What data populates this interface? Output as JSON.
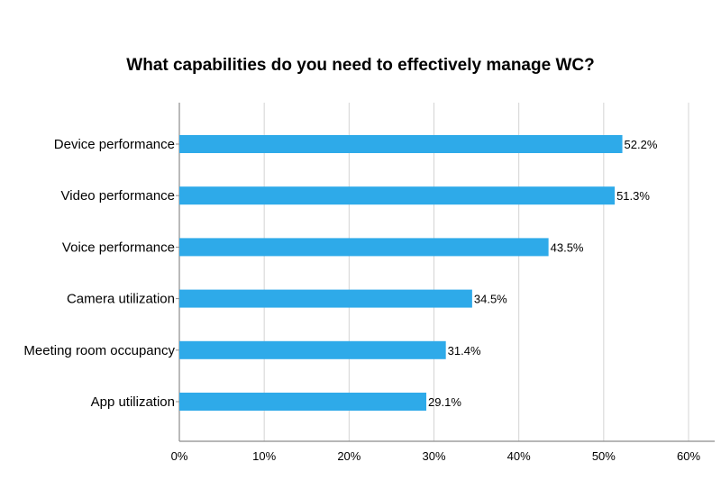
{
  "chart_data": {
    "type": "bar",
    "orientation": "horizontal",
    "title": "What capabilities do you need to effectively manage WC?",
    "xlabel": "",
    "ylabel": "",
    "categories": [
      "Device performance",
      "Video performance",
      "Voice performance",
      "Camera utilization",
      "Meeting room occupancy",
      "App utilization"
    ],
    "values": [
      52.2,
      51.3,
      43.5,
      34.5,
      31.4,
      29.1
    ],
    "data_labels": [
      "52.2%",
      "51.3%",
      "43.5%",
      "34.5%",
      "31.4%",
      "29.1%"
    ],
    "x_ticks": [
      "0%",
      "10%",
      "20%",
      "30%",
      "40%",
      "50%",
      "60%"
    ],
    "xlim": [
      0,
      60
    ],
    "grid": "vertical",
    "legend": "none",
    "bar_color": "#2eaae9"
  }
}
